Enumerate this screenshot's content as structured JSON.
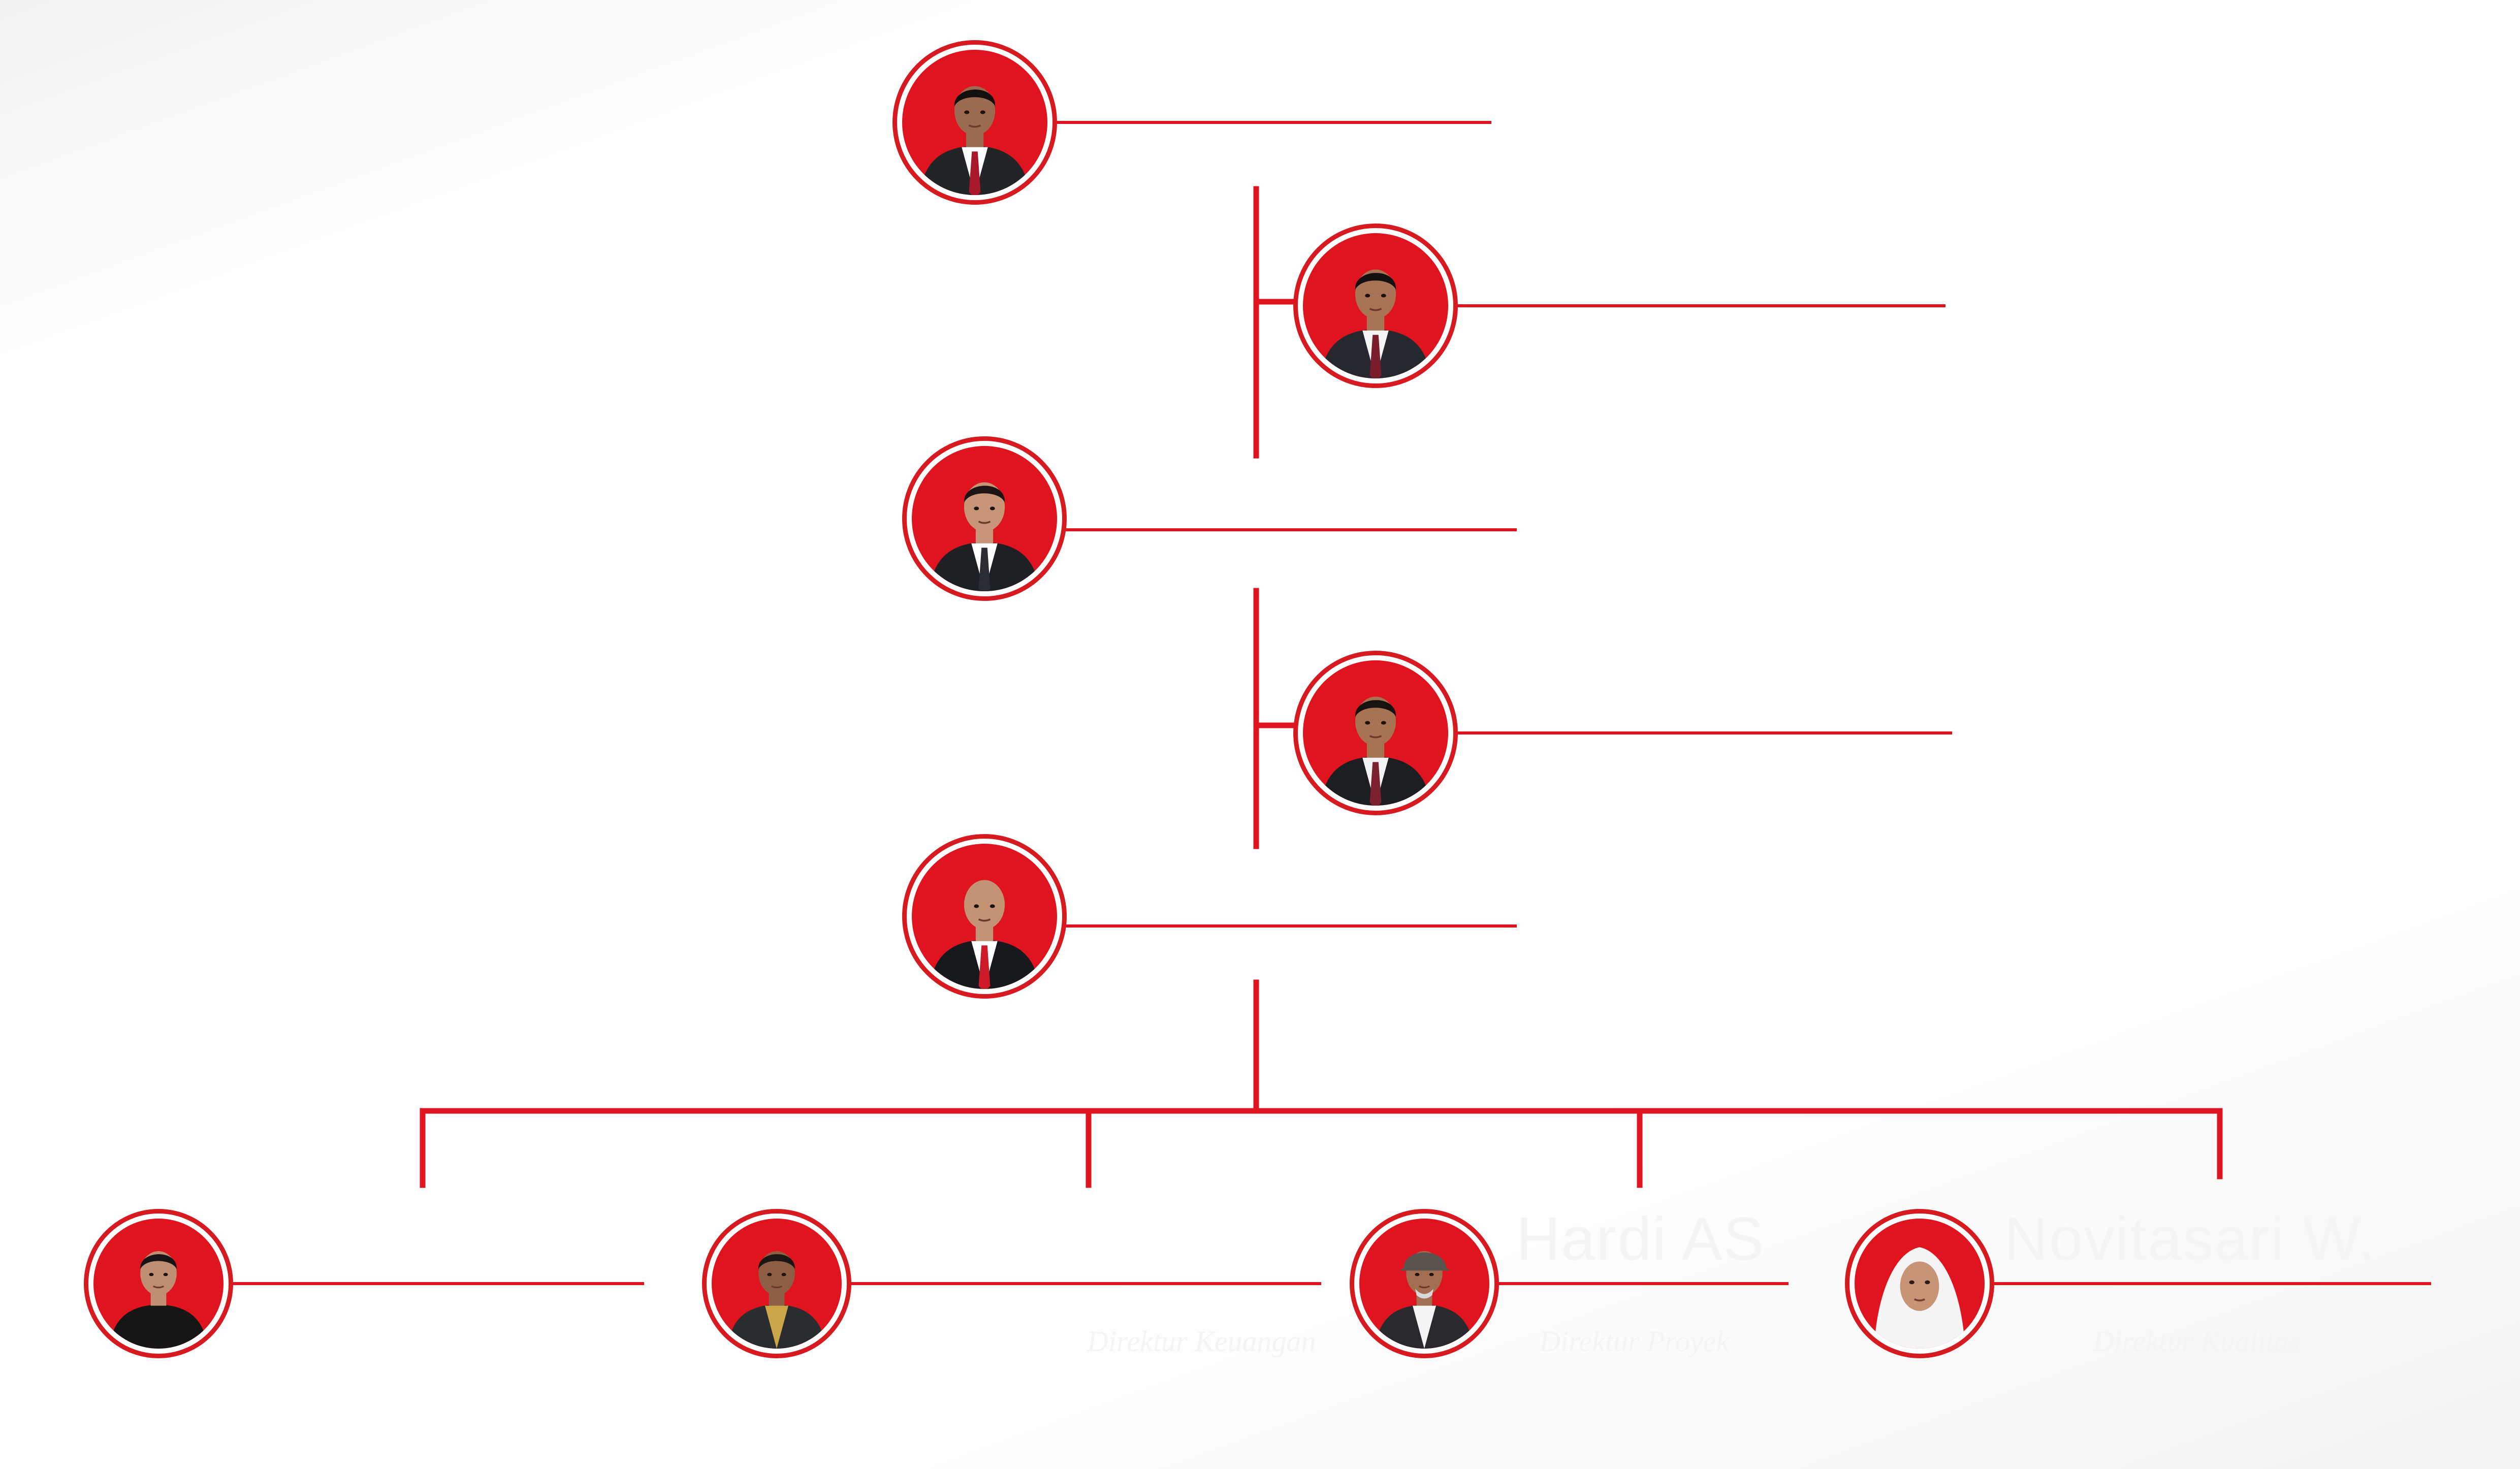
{
  "colors": {
    "accent": "#e0141e",
    "ring": "#d61a20",
    "label_text": "#f4f4f4"
  },
  "chart_data": {
    "type": "org-chart",
    "members": [
      {
        "id": "m1",
        "name": "",
        "role": "",
        "attire": "suit",
        "skin": "#9c6a50",
        "hair": "#151010",
        "shirt": "#ffffff",
        "tie": "#a8182a",
        "jacket": "#222428"
      },
      {
        "id": "m2",
        "name": "",
        "role": "",
        "attire": "suit",
        "skin": "#a97356",
        "hair": "#121010",
        "shirt": "#f5f5f5",
        "tie": "#7a1c2c",
        "jacket": "#26282e"
      },
      {
        "id": "m3",
        "name": "",
        "role": "",
        "attire": "suit",
        "skin": "#c89578",
        "hair": "#1b1614",
        "shirt": "#ffffff",
        "tie": "#2c2c34",
        "jacket": "#1e2024"
      },
      {
        "id": "m4",
        "name": "",
        "role": "",
        "attire": "suit",
        "skin": "#a87352",
        "hair": "#161210",
        "shirt": "#f2f2f2",
        "tie": "#7d2030",
        "jacket": "#1c1e22"
      },
      {
        "id": "m5",
        "name": "",
        "role": "",
        "attire": "suit",
        "skin": "#c49274",
        "hair": "#c49274",
        "shirt": "#ffffff",
        "tie": "#cc1a28",
        "jacket": "#18191c"
      },
      {
        "id": "m6",
        "name": "",
        "role": "",
        "attire": "shirt",
        "skin": "#c08e72",
        "hair": "#161414",
        "shirt": "#161616",
        "tie": "",
        "jacket": "#161616"
      },
      {
        "id": "m7",
        "name": "",
        "role": "Direktur Keuangan",
        "attire": "suit",
        "skin": "#8e5e44",
        "hair": "#1a1614",
        "shirt": "#caa648",
        "tie": "",
        "jacket": "#2a2c30"
      },
      {
        "id": "m8",
        "name": "Hardi AS",
        "role": "Direktur Proyek",
        "attire": "cap",
        "skin": "#a36e52",
        "hair": "#d8d8d8",
        "shirt": "#f4f4f4",
        "tie": "",
        "jacket": "#2a2a2e"
      },
      {
        "id": "m9",
        "name": "Novitasari W.",
        "role": "Direktur Kualitas",
        "attire": "hijab",
        "skin": "#c79476",
        "hair": "#f4f4f4",
        "shirt": "#eeeeee",
        "tie": "",
        "jacket": "#e4e4e4"
      }
    ]
  }
}
